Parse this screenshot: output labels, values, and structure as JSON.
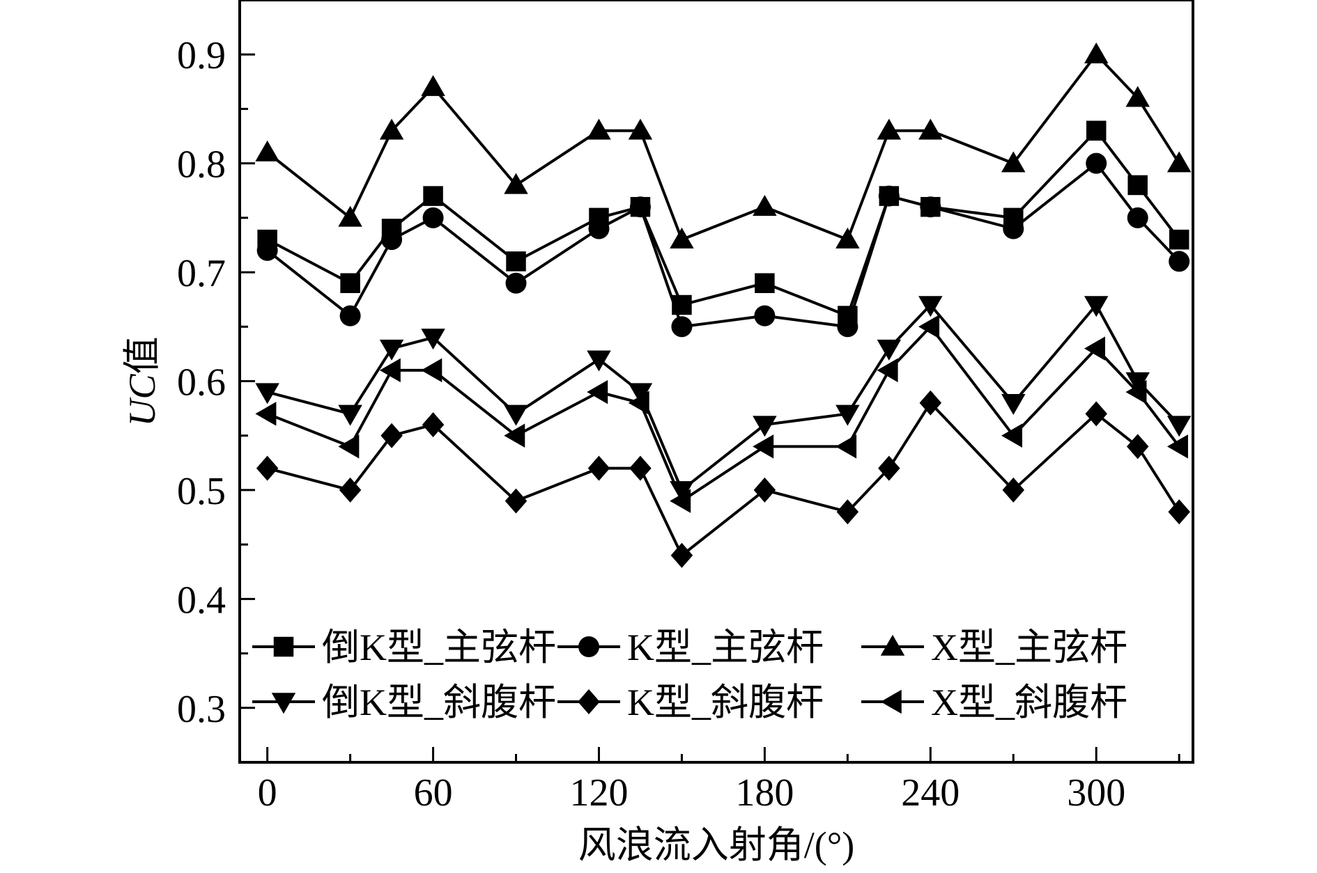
{
  "chart_data": {
    "type": "line",
    "title": "",
    "xlabel": "风浪流入射角/(°)",
    "ylabel_italic": "UC",
    "ylabel_suffix": "值",
    "xlim": [
      -10,
      335
    ],
    "ylim": [
      0.25,
      0.95
    ],
    "xticks": [
      0,
      60,
      120,
      180,
      240,
      300
    ],
    "xtick_labels": [
      "0",
      "60",
      "120",
      "180",
      "240",
      "300"
    ],
    "yticks": [
      0.3,
      0.4,
      0.5,
      0.6,
      0.7,
      0.8,
      0.9
    ],
    "ytick_labels": [
      "0.3",
      "0.4",
      "0.5",
      "0.6",
      "0.7",
      "0.8",
      "0.9"
    ],
    "x": [
      0,
      30,
      45,
      60,
      90,
      120,
      135,
      150,
      180,
      210,
      225,
      240,
      270,
      300,
      315,
      330
    ],
    "legend_position": "bottom, inside plot, 3 columns",
    "grid": false,
    "line_color": "#000000",
    "series": [
      {
        "name": "倒K型_主弦杆",
        "marker": "square",
        "values": [
          0.73,
          0.69,
          0.74,
          0.77,
          0.71,
          0.75,
          0.76,
          0.67,
          0.69,
          0.66,
          0.77,
          0.76,
          0.75,
          0.83,
          0.78,
          0.73
        ]
      },
      {
        "name": "K型_主弦杆",
        "marker": "circle",
        "values": [
          0.72,
          0.66,
          0.73,
          0.75,
          0.69,
          0.74,
          0.76,
          0.65,
          0.66,
          0.65,
          0.77,
          0.76,
          0.74,
          0.8,
          0.75,
          0.71
        ]
      },
      {
        "name": "X型_主弦杆",
        "marker": "triangle-up",
        "values": [
          0.81,
          0.75,
          0.83,
          0.87,
          0.78,
          0.83,
          0.83,
          0.73,
          0.76,
          0.73,
          0.83,
          0.83,
          0.8,
          0.9,
          0.86,
          0.8
        ]
      },
      {
        "name": "倒K型_斜腹杆",
        "marker": "triangle-down",
        "values": [
          0.59,
          0.57,
          0.63,
          0.64,
          0.57,
          0.62,
          0.59,
          0.5,
          0.56,
          0.57,
          0.63,
          0.67,
          0.58,
          0.67,
          0.6,
          0.56
        ]
      },
      {
        "name": "K型_斜腹杆",
        "marker": "diamond",
        "values": [
          0.52,
          0.5,
          0.55,
          0.56,
          0.49,
          0.52,
          0.52,
          0.44,
          0.5,
          0.48,
          0.52,
          0.58,
          0.5,
          0.57,
          0.54,
          0.48
        ]
      },
      {
        "name": "X型_斜腹杆",
        "marker": "triangle-left",
        "values": [
          0.57,
          0.54,
          0.61,
          0.61,
          0.55,
          0.59,
          0.58,
          0.49,
          0.54,
          0.54,
          0.61,
          0.65,
          0.55,
          0.63,
          0.59,
          0.54
        ]
      }
    ]
  }
}
